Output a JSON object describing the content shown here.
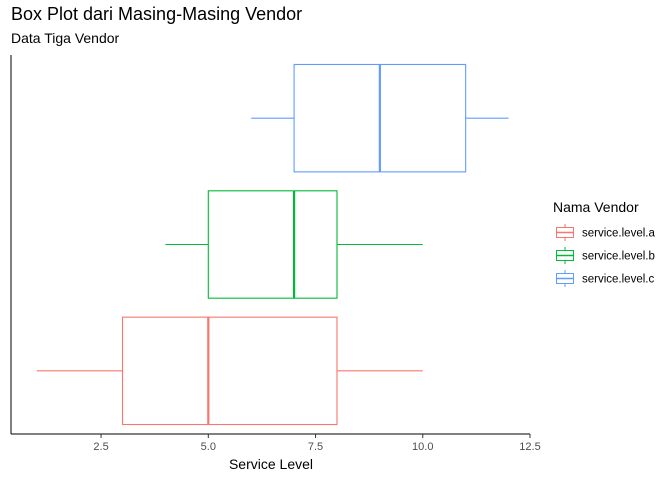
{
  "title": "Box Plot dari Masing-Masing Vendor",
  "subtitle": "Data Tiga Vendor",
  "chart_data": {
    "type": "boxplot",
    "orientation": "horizontal",
    "title": "Box Plot dari Masing-Masing Vendor",
    "subtitle": "Data Tiga Vendor",
    "xlabel": "Service Level",
    "ylabel": "",
    "xlim": [
      0.4,
      12.5
    ],
    "x_ticks": [
      2.5,
      5.0,
      7.5,
      10.0,
      12.5
    ],
    "x_tick_labels": [
      "2.5",
      "5.0",
      "7.5",
      "10.0",
      "12.5"
    ],
    "grid": false,
    "legend": {
      "title": "Nama Vendor",
      "placement": "right"
    },
    "series": [
      {
        "name": "service.level.a",
        "color": "#F8766D",
        "min": 1,
        "q1": 3,
        "median": 5,
        "q3": 8,
        "max": 10
      },
      {
        "name": "service.level.b",
        "color": "#00BA38",
        "min": 4,
        "q1": 5,
        "median": 7,
        "q3": 8,
        "max": 10
      },
      {
        "name": "service.level.c",
        "color": "#619CFF",
        "min": 6,
        "q1": 7,
        "median": 9,
        "q3": 11,
        "max": 12
      }
    ]
  }
}
